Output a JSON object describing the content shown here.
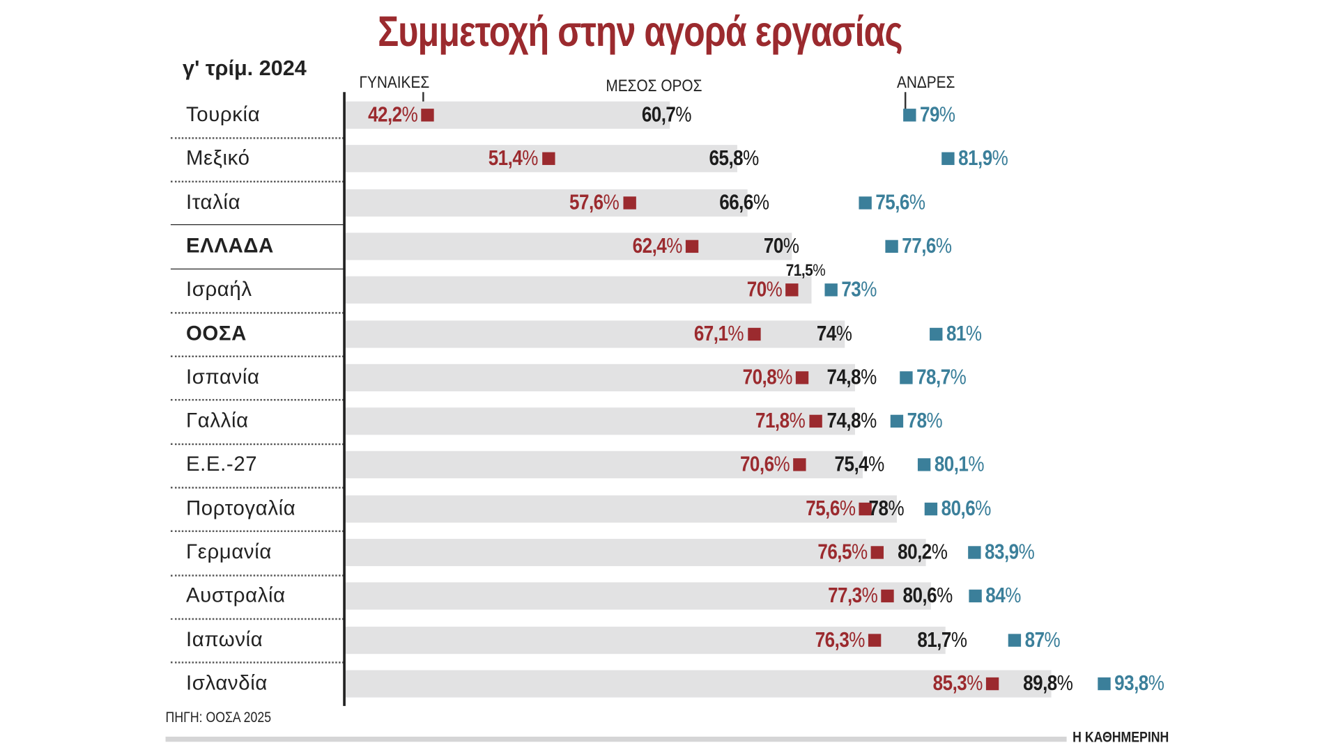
{
  "chart_data": {
    "type": "bar",
    "title": "Συμμετοχή στην αγορά εργασίας",
    "subtitle": "γ' τρίμ. 2024",
    "legend": {
      "women": "ΓΥΝΑΙΚΕΣ",
      "average": "ΜΕΣΟΣ ΟΡΟΣ",
      "men": "ΑΝΔΡΕΣ"
    },
    "colors": {
      "women": "#9b2a2e",
      "average": "#1c1c1c",
      "men": "#3b7f9a",
      "bar": "#e2e2e3"
    },
    "unit": "%",
    "categories": [
      "Τουρκία",
      "Μεξικό",
      "Ιταλία",
      "ΕΛΛΑΔΑ",
      "Ισραήλ",
      "ΟΟΣΑ",
      "Ισπανία",
      "Γαλλία",
      "Ε.Ε.-27",
      "Πορτογαλία",
      "Γερμανία",
      "Αυστραλία",
      "Ιαπωνία",
      "Ισλανδία"
    ],
    "highlighted": [
      "ΕΛΛΑΔΑ",
      "ΟΟΣΑ"
    ],
    "series": [
      {
        "name": "ΓΥΝΑΙΚΕΣ",
        "values": [
          42.2,
          51.4,
          57.6,
          62.4,
          70,
          67.1,
          70.8,
          71.8,
          70.6,
          75.6,
          76.5,
          77.3,
          76.3,
          85.3
        ],
        "labels": [
          "42,2",
          "51,4",
          "57,6",
          "62,4",
          "70",
          "67,1",
          "70,8",
          "71,8",
          "70,6",
          "75,6",
          "76,5",
          "77,3",
          "76,3",
          "85,3"
        ]
      },
      {
        "name": "ΜΕΣΟΣ ΟΡΟΣ",
        "values": [
          60.7,
          65.8,
          66.6,
          70,
          71.5,
          74,
          74.8,
          74.8,
          75.4,
          78,
          80.2,
          80.6,
          81.7,
          89.8
        ],
        "labels": [
          "60,7",
          "65,8",
          "66,6",
          "70",
          "71,5",
          "74",
          "74,8",
          "74,8",
          "75,4",
          "78",
          "80,2",
          "80,6",
          "81,7",
          "89,8"
        ]
      },
      {
        "name": "ΑΝΔΡΕΣ",
        "values": [
          79,
          81.9,
          75.6,
          77.6,
          73,
          81,
          78.7,
          78,
          80.1,
          80.6,
          83.9,
          84,
          87,
          93.8
        ],
        "labels": [
          "79",
          "81,9",
          "75,6",
          "77,6",
          "73",
          "81",
          "78,7",
          "78",
          "80,1",
          "80,6",
          "83,9",
          "84",
          "87",
          "93,8"
        ]
      }
    ],
    "source": "ΠΗΓΗ: ΟΟΣΑ 2025"
  },
  "brand": "Η ΚΑΘΗΜΕΡΙΝΗ"
}
